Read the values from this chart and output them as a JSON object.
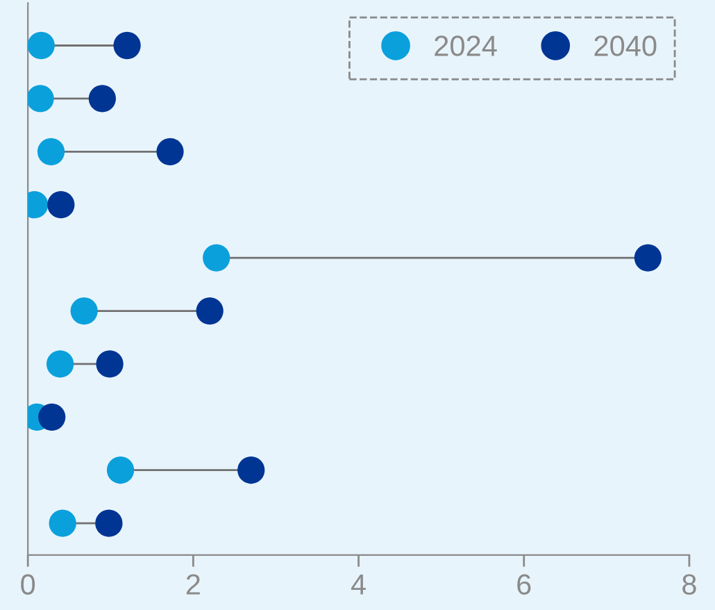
{
  "chart_data": {
    "type": "scatter",
    "orientation": "horizontal",
    "categories": [
      null,
      null,
      null,
      null,
      null,
      null,
      null,
      null,
      null,
      null
    ],
    "series": [
      {
        "name": "2024",
        "color": "#0aa0dc",
        "values": [
          0.16,
          0.15,
          0.28,
          0.08,
          2.28,
          0.68,
          0.39,
          0.11,
          1.12,
          0.42
        ]
      },
      {
        "name": "2040",
        "color": "#003594",
        "values": [
          1.2,
          0.9,
          1.72,
          0.4,
          7.5,
          2.2,
          0.99,
          0.29,
          2.7,
          0.98
        ]
      }
    ],
    "xlim": [
      0,
      8
    ],
    "xticks": [
      0,
      2,
      4,
      6,
      8
    ],
    "marker": "circle",
    "legend": "top right",
    "grid": false
  }
}
